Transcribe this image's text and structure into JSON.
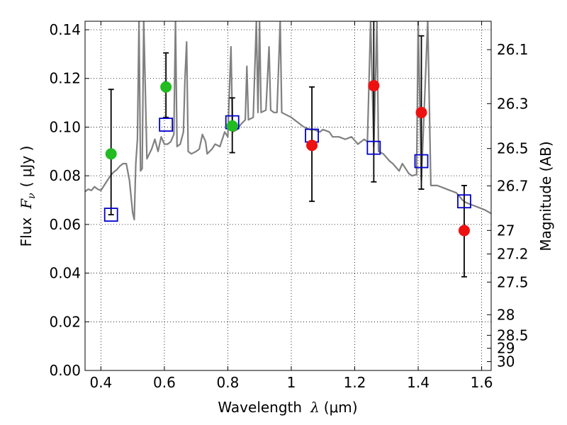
{
  "chart_data": {
    "type": "scatter",
    "xlabel_text": "Wavelength",
    "xlabel_symbol": "λ",
    "xlabel_unit": "(μm)",
    "ylabel_text": "Flux",
    "ylabel_symbol": "F",
    "ylabel_sub": "ν",
    "ylabel_unit": "( μJy )",
    "y2label": "Magnitude (AB)",
    "xlim": [
      0.35,
      1.63
    ],
    "ylim": [
      0.0,
      0.1435
    ],
    "xticks": [
      {
        "value": 0.4,
        "label": "0.4"
      },
      {
        "value": 0.6,
        "label": "0.6"
      },
      {
        "value": 0.8,
        "label": "0.8"
      },
      {
        "value": 1.0,
        "label": "1"
      },
      {
        "value": 1.2,
        "label": "1.2"
      },
      {
        "value": 1.4,
        "label": "1.4"
      },
      {
        "value": 1.6,
        "label": "1.6"
      }
    ],
    "yticks": [
      {
        "value": 0.0,
        "label": "0.00"
      },
      {
        "value": 0.02,
        "label": "0.02"
      },
      {
        "value": 0.04,
        "label": "0.04"
      },
      {
        "value": 0.06,
        "label": "0.06"
      },
      {
        "value": 0.08,
        "label": "0.08"
      },
      {
        "value": 0.1,
        "label": "0.10"
      },
      {
        "value": 0.12,
        "label": "0.12"
      },
      {
        "value": 0.14,
        "label": "0.14"
      }
    ],
    "y2ticks": [
      {
        "mag": 26.1,
        "label": "26.1"
      },
      {
        "mag": 26.3,
        "label": "26.3"
      },
      {
        "mag": 26.5,
        "label": "26.5"
      },
      {
        "mag": 26.7,
        "label": "26.7"
      },
      {
        "mag": 27.0,
        "label": "27"
      },
      {
        "mag": 27.2,
        "label": "27.2"
      },
      {
        "mag": 27.5,
        "label": "27.5"
      },
      {
        "mag": 28.0,
        "label": "28"
      },
      {
        "mag": 28.5,
        "label": "28.5"
      },
      {
        "mag": 29.0,
        "label": "29"
      },
      {
        "mag": 30.0,
        "label": "30"
      }
    ],
    "grid": true,
    "colors": {
      "spectrum": "#808080",
      "green": "#22bb22",
      "red": "#ee1111",
      "model": "#0000cc",
      "errorbar": "#000000"
    },
    "series": [
      {
        "kind": "spectrum",
        "points": [
          [
            0.35,
            0.0735
          ],
          [
            0.36,
            0.0745
          ],
          [
            0.37,
            0.074
          ],
          [
            0.38,
            0.0755
          ],
          [
            0.39,
            0.0745
          ],
          [
            0.4,
            0.074
          ],
          [
            0.41,
            0.076
          ],
          [
            0.42,
            0.078
          ],
          [
            0.43,
            0.08
          ],
          [
            0.44,
            0.0815
          ],
          [
            0.45,
            0.0825
          ],
          [
            0.46,
            0.084
          ],
          [
            0.47,
            0.085
          ],
          [
            0.48,
            0.085
          ],
          [
            0.49,
            0.078
          ],
          [
            0.5,
            0.065
          ],
          [
            0.505,
            0.062
          ],
          [
            0.51,
            0.085
          ],
          [
            0.515,
            0.095
          ],
          [
            0.52,
            0.1435
          ],
          [
            0.525,
            0.082
          ],
          [
            0.53,
            0.083
          ],
          [
            0.535,
            0.1435
          ],
          [
            0.545,
            0.087
          ],
          [
            0.56,
            0.091
          ],
          [
            0.57,
            0.095
          ],
          [
            0.58,
            0.09
          ],
          [
            0.59,
            0.096
          ],
          [
            0.6,
            0.093
          ],
          [
            0.61,
            0.093
          ],
          [
            0.62,
            0.094
          ],
          [
            0.63,
            0.097
          ],
          [
            0.635,
            0.1435
          ],
          [
            0.64,
            0.092
          ],
          [
            0.65,
            0.093
          ],
          [
            0.66,
            0.098
          ],
          [
            0.665,
            0.12
          ],
          [
            0.67,
            0.135
          ],
          [
            0.675,
            0.09
          ],
          [
            0.685,
            0.089
          ],
          [
            0.7,
            0.09
          ],
          [
            0.71,
            0.091
          ],
          [
            0.72,
            0.097
          ],
          [
            0.73,
            0.094
          ],
          [
            0.735,
            0.089
          ],
          [
            0.75,
            0.091
          ],
          [
            0.76,
            0.093
          ],
          [
            0.775,
            0.092
          ],
          [
            0.79,
            0.098
          ],
          [
            0.8,
            0.096
          ],
          [
            0.81,
            0.133
          ],
          [
            0.815,
            0.098
          ],
          [
            0.83,
            0.099
          ],
          [
            0.84,
            0.101
          ],
          [
            0.855,
            0.103
          ],
          [
            0.86,
            0.125
          ],
          [
            0.865,
            0.103
          ],
          [
            0.88,
            0.104
          ],
          [
            0.89,
            0.1435
          ],
          [
            0.895,
            0.106
          ],
          [
            0.9,
            0.1435
          ],
          [
            0.905,
            0.106
          ],
          [
            0.92,
            0.107
          ],
          [
            0.93,
            0.133
          ],
          [
            0.935,
            0.107
          ],
          [
            0.945,
            0.106
          ],
          [
            0.955,
            0.106
          ],
          [
            0.965,
            0.1435
          ],
          [
            0.97,
            0.106
          ],
          [
            0.985,
            0.105
          ],
          [
            1.0,
            0.104
          ],
          [
            1.02,
            0.102
          ],
          [
            1.04,
            0.1
          ],
          [
            1.06,
            0.099
          ],
          [
            1.07,
            0.099
          ],
          [
            1.09,
            0.098
          ],
          [
            1.1,
            0.099
          ],
          [
            1.12,
            0.098
          ],
          [
            1.13,
            0.096
          ],
          [
            1.15,
            0.096
          ],
          [
            1.17,
            0.095
          ],
          [
            1.19,
            0.096
          ],
          [
            1.21,
            0.093
          ],
          [
            1.23,
            0.095
          ],
          [
            1.24,
            0.094
          ],
          [
            1.25,
            0.1435
          ],
          [
            1.26,
            0.092
          ],
          [
            1.27,
            0.1435
          ],
          [
            1.275,
            0.09
          ],
          [
            1.29,
            0.089
          ],
          [
            1.31,
            0.086
          ],
          [
            1.32,
            0.085
          ],
          [
            1.34,
            0.082
          ],
          [
            1.35,
            0.085
          ],
          [
            1.37,
            0.081
          ],
          [
            1.38,
            0.08
          ],
          [
            1.395,
            0.0805
          ],
          [
            1.4,
            0.1435
          ],
          [
            1.41,
            0.078
          ],
          [
            1.43,
            0.1435
          ],
          [
            1.44,
            0.076
          ],
          [
            1.46,
            0.076
          ],
          [
            1.48,
            0.075
          ],
          [
            1.5,
            0.074
          ],
          [
            1.52,
            0.073
          ],
          [
            1.54,
            0.07
          ],
          [
            1.55,
            0.069
          ],
          [
            1.57,
            0.068
          ],
          [
            1.59,
            0.067
          ],
          [
            1.61,
            0.066
          ],
          [
            1.63,
            0.0645
          ]
        ]
      },
      {
        "kind": "model",
        "points": [
          [
            0.432,
            0.064
          ],
          [
            0.605,
            0.101
          ],
          [
            0.814,
            0.102
          ],
          [
            1.065,
            0.0965
          ],
          [
            1.26,
            0.0915
          ],
          [
            1.41,
            0.086
          ],
          [
            1.545,
            0.0695
          ]
        ]
      },
      {
        "kind": "errorbars",
        "points": [
          [
            0.432,
            0.064,
            0.1155
          ],
          [
            0.605,
            0.104,
            0.1305
          ],
          [
            0.814,
            0.0895,
            0.112
          ],
          [
            1.065,
            0.0695,
            0.1165
          ],
          [
            1.26,
            0.0775,
            0.1435
          ],
          [
            1.41,
            0.0745,
            0.1375
          ],
          [
            1.545,
            0.0385,
            0.076
          ]
        ]
      },
      {
        "kind": "green",
        "points": [
          [
            0.432,
            0.089
          ],
          [
            0.605,
            0.1165
          ],
          [
            0.814,
            0.1005
          ]
        ]
      },
      {
        "kind": "red",
        "points": [
          [
            1.065,
            0.0925
          ],
          [
            1.26,
            0.117
          ],
          [
            1.41,
            0.106
          ],
          [
            1.545,
            0.0575
          ]
        ]
      }
    ]
  }
}
